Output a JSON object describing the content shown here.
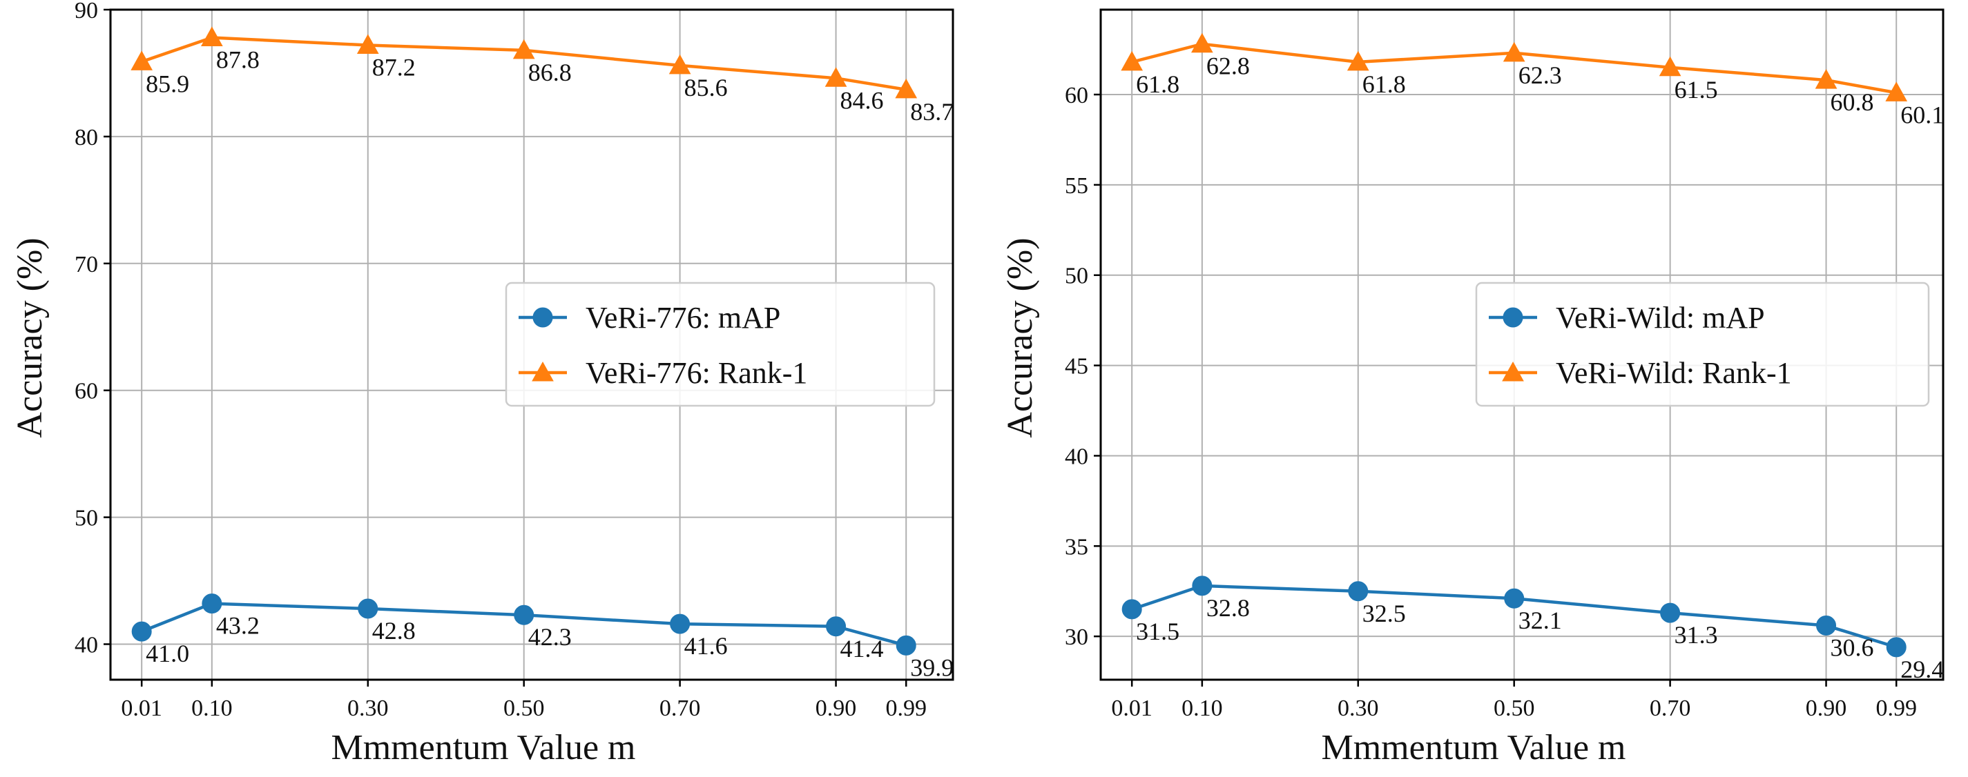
{
  "colors": {
    "map": "#1f77b4",
    "rank1": "#ff7f0e",
    "grid": "#b0b0b0",
    "axis": "#000000"
  },
  "chart_data": [
    {
      "type": "line",
      "xlabel": "Mmmentum Value m",
      "ylabel": "Accuracy (%)",
      "x": [
        0.01,
        0.1,
        0.3,
        0.5,
        0.7,
        0.9,
        0.99
      ],
      "x_tick_labels": [
        "0.01",
        "0.10",
        "0.30",
        "0.50",
        "0.70",
        "0.90",
        "0.99"
      ],
      "xlim": [
        -0.03,
        1.05
      ],
      "ylim": [
        37.2,
        90
      ],
      "y_ticks": [
        40,
        50,
        60,
        70,
        80,
        90
      ],
      "grid": true,
      "legend_position": "center-right",
      "series": [
        {
          "name": "VeRi-776: mAP",
          "marker": "circle",
          "color_key": "map",
          "values": [
            41.0,
            43.2,
            42.8,
            42.3,
            41.6,
            41.4,
            39.9
          ],
          "labels": [
            "41.0",
            "43.2",
            "42.8",
            "42.3",
            "41.6",
            "41.4",
            "39.9"
          ]
        },
        {
          "name": "VeRi-776: Rank-1",
          "marker": "triangle",
          "color_key": "rank1",
          "values": [
            85.9,
            87.8,
            87.2,
            86.8,
            85.6,
            84.6,
            83.7
          ],
          "labels": [
            "85.9",
            "87.8",
            "87.2",
            "86.8",
            "85.6",
            "84.6",
            "83.7"
          ]
        }
      ]
    },
    {
      "type": "line",
      "xlabel": "Mmmentum Value m",
      "ylabel": "Accuracy (%)",
      "x": [
        0.01,
        0.1,
        0.3,
        0.5,
        0.7,
        0.9,
        0.99
      ],
      "x_tick_labels": [
        "0.01",
        "0.10",
        "0.30",
        "0.50",
        "0.70",
        "0.90",
        "0.99"
      ],
      "xlim": [
        -0.03,
        1.05
      ],
      "ylim": [
        27.6,
        64.7
      ],
      "y_ticks": [
        30,
        35,
        40,
        45,
        50,
        55,
        60
      ],
      "grid": true,
      "legend_position": "center-right",
      "series": [
        {
          "name": "VeRi-Wild: mAP",
          "marker": "circle",
          "color_key": "map",
          "values": [
            31.5,
            32.8,
            32.5,
            32.1,
            31.3,
            30.6,
            29.4
          ],
          "labels": [
            "31.5",
            "32.8",
            "32.5",
            "32.1",
            "31.3",
            "30.6",
            "29.4"
          ]
        },
        {
          "name": "VeRi-Wild: Rank-1",
          "marker": "triangle",
          "color_key": "rank1",
          "values": [
            61.8,
            62.8,
            61.8,
            62.3,
            61.5,
            60.8,
            60.1
          ],
          "labels": [
            "61.8",
            "62.8",
            "61.8",
            "62.3",
            "61.5",
            "60.8",
            "60.1"
          ]
        }
      ]
    }
  ]
}
